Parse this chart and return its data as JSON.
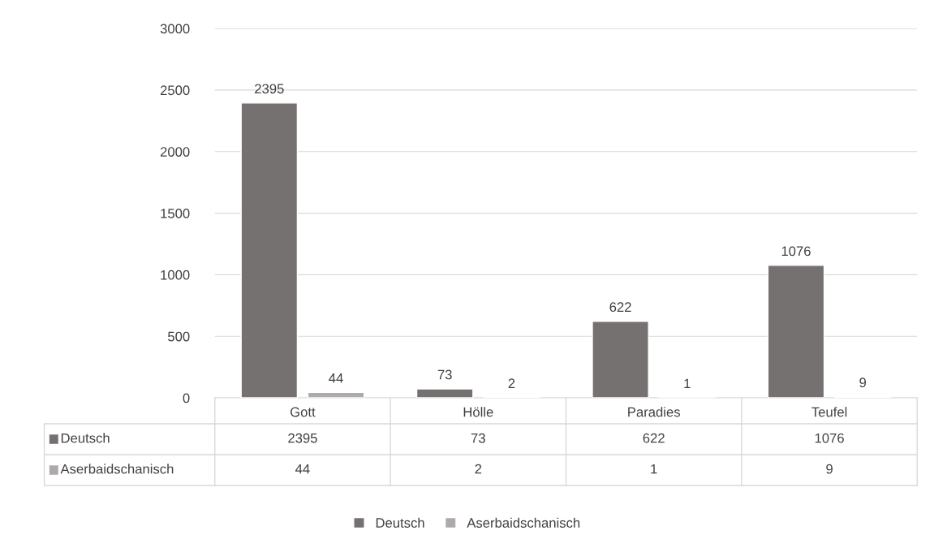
{
  "chart_data": {
    "type": "bar",
    "categories": [
      "Gott",
      "Hölle",
      "Paradies",
      "Teufel"
    ],
    "series": [
      {
        "name": "Deutsch",
        "color": "#767171",
        "values": [
          2395,
          73,
          622,
          1076
        ],
        "value_labels": [
          "2395",
          "73",
          "622",
          "1076"
        ]
      },
      {
        "name": "Aserbaidschanisch",
        "color": "#aeaaaa",
        "values": [
          44,
          2,
          1,
          9
        ],
        "value_labels": [
          "44",
          "2",
          "1",
          "9"
        ]
      }
    ],
    "annotations": [
      "2395",
      "73",
      "622",
      "1076",
      "44",
      "2",
      "1",
      "9"
    ],
    "ylim": [
      0,
      3000
    ],
    "yticks": [
      0,
      500,
      1000,
      1500,
      2000,
      2500,
      3000
    ],
    "grid": "y",
    "legend": "bottom"
  }
}
